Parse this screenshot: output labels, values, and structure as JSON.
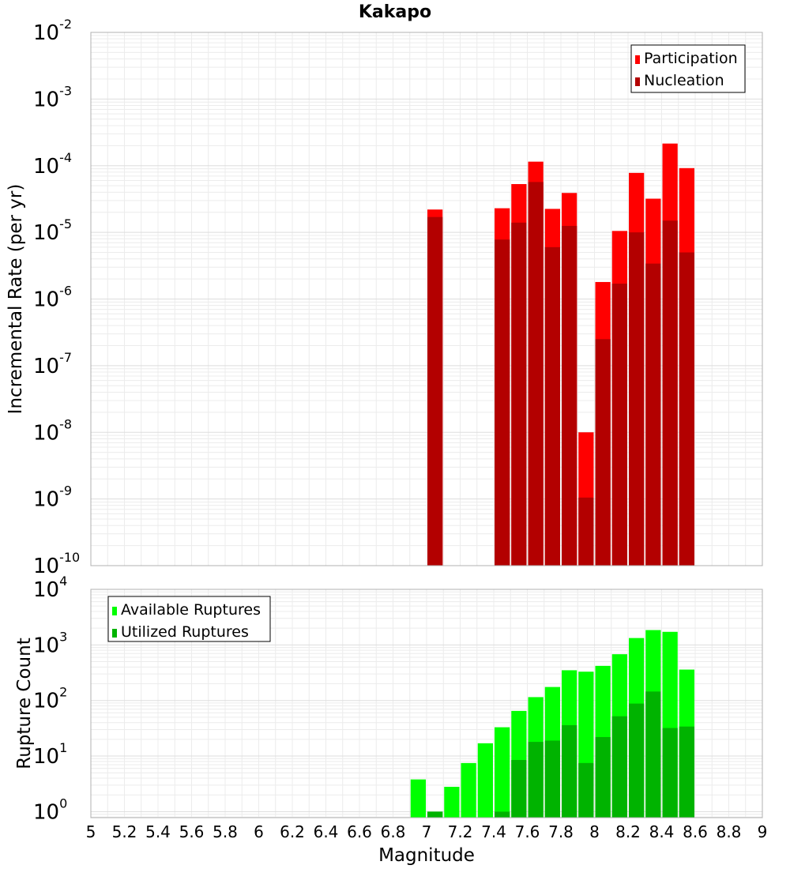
{
  "chart_data": [
    {
      "type": "bar",
      "title": "Kakapo",
      "xlabel": "",
      "ylabel": "Incremental Rate (per yr)",
      "yscale": "log",
      "xlim": [
        5,
        9
      ],
      "ylim": [
        1e-10,
        0.01
      ],
      "grid": true,
      "legend_position": "top-right",
      "bin_width": 0.1,
      "y_tick_labels": [
        {
          "mantissa": "10",
          "exponent": "-2"
        },
        {
          "mantissa": "10",
          "exponent": "-3"
        },
        {
          "mantissa": "10",
          "exponent": "-4"
        },
        {
          "mantissa": "10",
          "exponent": "-5"
        },
        {
          "mantissa": "10",
          "exponent": "-6"
        },
        {
          "mantissa": "10",
          "exponent": "-7"
        },
        {
          "mantissa": "10",
          "exponent": "-8"
        },
        {
          "mantissa": "10",
          "exponent": "-9"
        },
        {
          "mantissa": "10",
          "exponent": "-10"
        }
      ],
      "series": [
        {
          "name": "Participation",
          "color": "#ff0000",
          "points": [
            [
              7.05,
              2.2e-05
            ],
            [
              7.45,
              2.3e-05
            ],
            [
              7.55,
              5.3e-05
            ],
            [
              7.65,
              0.000115
            ],
            [
              7.75,
              2.25e-05
            ],
            [
              7.85,
              3.9e-05
            ],
            [
              7.95,
              1e-08
            ],
            [
              8.05,
              1.8e-06
            ],
            [
              8.15,
              1.05e-05
            ],
            [
              8.25,
              7.8e-05
            ],
            [
              8.35,
              3.2e-05
            ],
            [
              8.45,
              0.000215
            ],
            [
              8.55,
              9.2e-05
            ]
          ]
        },
        {
          "name": "Nucleation",
          "color": "#b30000",
          "points": [
            [
              7.05,
              1.7e-05
            ],
            [
              7.45,
              7.8e-06
            ],
            [
              7.55,
              1.4e-05
            ],
            [
              7.65,
              5.7e-05
            ],
            [
              7.75,
              6e-06
            ],
            [
              7.85,
              1.25e-05
            ],
            [
              7.95,
              1.05e-09
            ],
            [
              8.05,
              2.5e-07
            ],
            [
              8.15,
              1.7e-06
            ],
            [
              8.25,
              1e-05
            ],
            [
              8.35,
              3.4e-06
            ],
            [
              8.45,
              1.5e-05
            ],
            [
              8.55,
              5e-06
            ]
          ]
        }
      ]
    },
    {
      "type": "bar",
      "title": "",
      "xlabel": "Magnitude",
      "ylabel": "Rupture Count",
      "yscale": "log",
      "xlim": [
        5,
        9
      ],
      "ylim": [
        0.78,
        10000
      ],
      "grid": true,
      "legend_position": "top-left",
      "bin_width": 0.1,
      "x_ticks": [
        5,
        5.2,
        5.4,
        5.6,
        5.8,
        6,
        6.2,
        6.4,
        6.6,
        6.8,
        7,
        7.2,
        7.4,
        7.6,
        7.8,
        8,
        8.2,
        8.4,
        8.6,
        8.8,
        9
      ],
      "x_tick_labels": [
        "5",
        "5.2",
        "5.4",
        "5.6",
        "5.8",
        "6",
        "6.2",
        "6.4",
        "6.6",
        "6.8",
        "7",
        "7.2",
        "7.4",
        "7.6",
        "7.8",
        "8",
        "8.2",
        "8.4",
        "8.6",
        "8.8",
        "9"
      ],
      "y_tick_labels": [
        {
          "mantissa": "10",
          "exponent": "4"
        },
        {
          "mantissa": "10",
          "exponent": "3"
        },
        {
          "mantissa": "10",
          "exponent": "2"
        },
        {
          "mantissa": "10",
          "exponent": "1"
        },
        {
          "mantissa": "10",
          "exponent": "0"
        }
      ],
      "series": [
        {
          "name": "Available Ruptures",
          "color": "#00ff00",
          "points": [
            [
              6.95,
              3.8
            ],
            [
              7.05,
              1.0
            ],
            [
              7.15,
              2.8
            ],
            [
              7.25,
              7.5
            ],
            [
              7.35,
              17
            ],
            [
              7.45,
              33
            ],
            [
              7.55,
              65
            ],
            [
              7.65,
              115
            ],
            [
              7.75,
              175
            ],
            [
              7.85,
              350
            ],
            [
              7.95,
              330
            ],
            [
              8.05,
              420
            ],
            [
              8.15,
              680
            ],
            [
              8.25,
              1330
            ],
            [
              8.35,
              1850
            ],
            [
              8.45,
              1720
            ],
            [
              8.55,
              360
            ]
          ]
        },
        {
          "name": "Utilized Ruptures",
          "color": "#00b300",
          "points": [
            [
              7.05,
              1.0
            ],
            [
              7.45,
              1.0
            ],
            [
              7.55,
              8.5
            ],
            [
              7.65,
              18
            ],
            [
              7.75,
              19
            ],
            [
              7.85,
              36
            ],
            [
              7.95,
              7.5
            ],
            [
              8.05,
              22
            ],
            [
              8.15,
              52
            ],
            [
              8.25,
              88
            ],
            [
              8.35,
              145
            ],
            [
              8.45,
              32
            ],
            [
              8.55,
              34
            ]
          ]
        }
      ]
    }
  ]
}
